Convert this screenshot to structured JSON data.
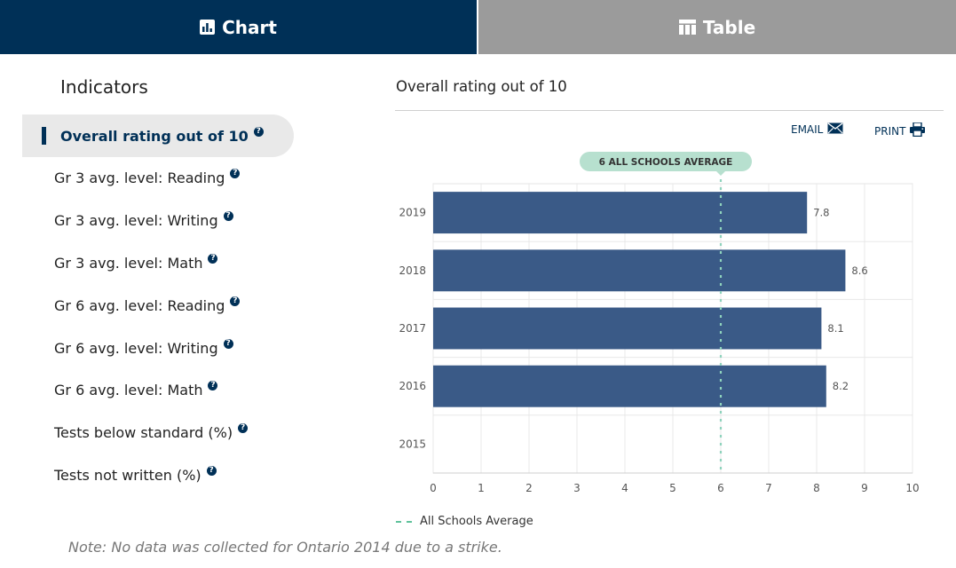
{
  "tabs": {
    "chart_label": "Chart",
    "table_label": "Table"
  },
  "indicators": {
    "title": "Indicators",
    "items": [
      {
        "label": "Overall rating out of 10",
        "active": true
      },
      {
        "label": "Gr 3 avg. level: Reading",
        "active": false
      },
      {
        "label": "Gr 3 avg. level: Writing",
        "active": false
      },
      {
        "label": "Gr 3 avg. level: Math",
        "active": false
      },
      {
        "label": "Gr 6 avg. level: Reading",
        "active": false
      },
      {
        "label": "Gr 6 avg. level: Writing",
        "active": false
      },
      {
        "label": "Gr 6 avg. level: Math",
        "active": false
      },
      {
        "label": "Tests below standard (%)",
        "active": false
      },
      {
        "label": "Tests not written (%)",
        "active": false
      }
    ],
    "help_glyph": "?"
  },
  "chart_panel": {
    "title": "Overall rating out of 10",
    "email_label": "EMAIL",
    "print_label": "PRINT"
  },
  "colors": {
    "active_tab": "#003057",
    "inactive_tab": "#9b9b9b",
    "bar": "#3a5a87",
    "average_line": "#8fd3bd",
    "average_badge": "#b7e0cf"
  },
  "chart_data": {
    "type": "bar",
    "orientation": "horizontal",
    "categories": [
      "2019",
      "2018",
      "2017",
      "2016",
      "2015"
    ],
    "values": [
      7.8,
      8.6,
      8.1,
      8.2,
      null
    ],
    "xlim": [
      0,
      10
    ],
    "xticks": [
      "0",
      "1",
      "2",
      "3",
      "4",
      "5",
      "6",
      "7",
      "8",
      "9",
      "10"
    ],
    "data_labels": [
      "7.8",
      "8.6",
      "8.1",
      "8.2",
      ""
    ],
    "grid": true,
    "reference_line": {
      "value": 6,
      "label": "6 ALL SCHOOLS AVERAGE"
    },
    "legend": {
      "label": "All Schools Average",
      "placement": "bottom-left"
    }
  },
  "note": "Note: No data was collected for Ontario 2014 due to a strike."
}
